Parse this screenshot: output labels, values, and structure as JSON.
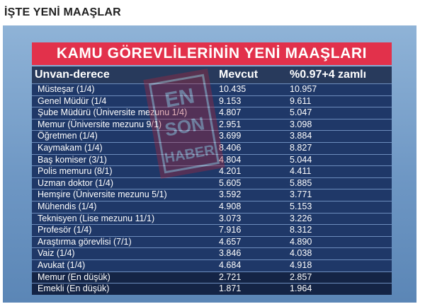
{
  "page": {
    "heading": "İŞTE YENİ MAAŞLAR"
  },
  "table": {
    "title": "KAMU GÖREVLİLERİNİN YENİ MAAŞLARI",
    "headers": [
      "Unvan-derece",
      "Mevcut",
      "%0.97+4 zamlı"
    ],
    "rows": [
      [
        "Müsteşar (1/4)",
        "10.435",
        "10.957"
      ],
      [
        "Genel Müdür (1/4",
        "9.153",
        "9.611"
      ],
      [
        "Şube Müdürü (Üniversite mezunu 1/4)",
        "4.807",
        "5.047"
      ],
      [
        "Memur (Üniversite mezunu 9/1)",
        "2.951",
        "3.098"
      ],
      [
        "Öğretmen (1/4)",
        "3.699",
        "3.884"
      ],
      [
        "Kaymakam (1/4)",
        "8.406",
        "8.827"
      ],
      [
        "Baş komiser (3/1)",
        "4.804",
        "5.044"
      ],
      [
        "Polis memuru (8/1)",
        "4.201",
        "4.411"
      ],
      [
        "Uzman doktor (1/4)",
        "5.605",
        "5.885"
      ],
      [
        "Hemşire (Üniversite mezunu 5/1)",
        "3.592",
        "3.771"
      ],
      [
        "Mühendis (1/4)",
        "4.908",
        "5.153"
      ],
      [
        "Teknisyen (Lise mezunu 11/1)",
        "3.073",
        "3.226"
      ],
      [
        "Profesör (1/4)",
        "7.916",
        "8.312"
      ],
      [
        "Araştırma görevlisi (7/1)",
        "4.657",
        "4.890"
      ],
      [
        "Vaiz (1/4)",
        "3.846",
        "4.038"
      ],
      [
        "Avukat (1/4)",
        "4.684",
        "4.918"
      ]
    ],
    "footer_rows": [
      [
        "Memur (En düşük)",
        "2.721",
        "2.857"
      ],
      [
        "Emekli (En düşük)",
        "1.871",
        "1.964"
      ]
    ]
  },
  "watermark": {
    "text": [
      "EN",
      "SON",
      "HABER"
    ]
  },
  "colors": {
    "title_bg": "#e2314b",
    "header_bg": "#283a5c",
    "row_bg": "#1f3868",
    "footer_bg": "#142445",
    "panel_bg": "#7aa2cd"
  }
}
